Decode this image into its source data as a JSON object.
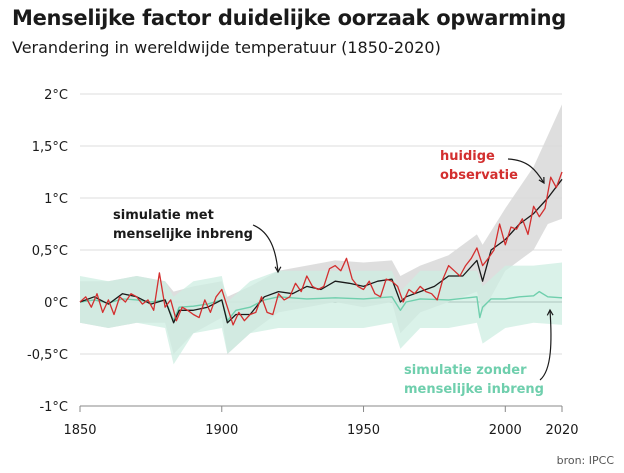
{
  "header": {
    "title": "Menselijke factor duidelijke oorzaak opwarming",
    "subtitle": "Verandering in wereldwijde temperatuur (1850-2020)"
  },
  "source": "bron: IPCC",
  "colors": {
    "observed": "#d32f2f",
    "human_sim": "#1a1a1a",
    "human_band": "#dadada",
    "natural_sim": "#6fcfad",
    "natural_band": "#cdeee1",
    "grid": "#dddddd",
    "baseline": "#555555"
  },
  "chart_data": {
    "type": "line",
    "title": "Verandering in wereldwijde temperatuur (1850-2020)",
    "ylim": [
      -1,
      2
    ],
    "xlim": [
      1850,
      2020
    ],
    "yticks": [
      -1,
      -0.5,
      0,
      0.5,
      1,
      1.5,
      2
    ],
    "ytick_labels": [
      "-1°C",
      "-0,5°C",
      "0°C",
      "0,5°C",
      "1°C",
      "1,5°C",
      "2°C"
    ],
    "xticks": [
      1850,
      1900,
      1950,
      2000,
      2020
    ],
    "xtick_labels": [
      "1850",
      "1900",
      "1950",
      "2000",
      "2020"
    ],
    "grid": true,
    "series": [
      {
        "name": "huidige observatie",
        "x": [
          1850,
          1852,
          1854,
          1856,
          1858,
          1860,
          1862,
          1864,
          1866,
          1868,
          1870,
          1872,
          1874,
          1876,
          1878,
          1880,
          1882,
          1884,
          1886,
          1888,
          1890,
          1892,
          1894,
          1896,
          1898,
          1900,
          1902,
          1904,
          1906,
          1908,
          1910,
          1912,
          1914,
          1916,
          1918,
          1920,
          1922,
          1924,
          1926,
          1928,
          1930,
          1932,
          1934,
          1936,
          1938,
          1940,
          1942,
          1944,
          1946,
          1948,
          1950,
          1952,
          1954,
          1956,
          1958,
          1960,
          1962,
          1964,
          1966,
          1968,
          1970,
          1972,
          1974,
          1976,
          1978,
          1980,
          1982,
          1984,
          1986,
          1988,
          1990,
          1992,
          1994,
          1996,
          1998,
          2000,
          2002,
          2004,
          2006,
          2008,
          2010,
          2012,
          2014,
          2016,
          2018,
          2020
        ],
        "y": [
          0.0,
          0.05,
          -0.05,
          0.08,
          -0.1,
          0.02,
          -0.12,
          0.05,
          0.0,
          0.08,
          0.05,
          -0.02,
          0.02,
          -0.08,
          0.28,
          -0.05,
          0.02,
          -0.18,
          -0.05,
          -0.08,
          -0.12,
          -0.15,
          0.02,
          -0.1,
          0.05,
          0.12,
          -0.05,
          -0.22,
          -0.1,
          -0.18,
          -0.12,
          -0.1,
          0.05,
          -0.1,
          -0.12,
          0.08,
          0.02,
          0.05,
          0.18,
          0.1,
          0.25,
          0.15,
          0.12,
          0.15,
          0.32,
          0.35,
          0.3,
          0.42,
          0.22,
          0.15,
          0.12,
          0.2,
          0.08,
          0.05,
          0.22,
          0.2,
          0.15,
          0.0,
          0.12,
          0.08,
          0.15,
          0.1,
          0.08,
          0.02,
          0.22,
          0.35,
          0.3,
          0.25,
          0.35,
          0.42,
          0.52,
          0.35,
          0.42,
          0.5,
          0.75,
          0.55,
          0.72,
          0.7,
          0.8,
          0.65,
          0.92,
          0.82,
          0.9,
          1.2,
          1.1,
          1.25
        ]
      },
      {
        "name": "simulatie met menselijke inbreng",
        "x": [
          1850,
          1855,
          1860,
          1865,
          1870,
          1875,
          1880,
          1883,
          1885,
          1890,
          1895,
          1900,
          1902,
          1905,
          1910,
          1915,
          1920,
          1925,
          1930,
          1935,
          1940,
          1945,
          1950,
          1955,
          1960,
          1963,
          1965,
          1970,
          1975,
          1980,
          1985,
          1990,
          1992,
          1995,
          2000,
          2005,
          2010,
          2015,
          2020
        ],
        "y": [
          0.0,
          0.05,
          -0.02,
          0.08,
          0.05,
          -0.02,
          0.02,
          -0.2,
          -0.08,
          -0.08,
          -0.05,
          0.02,
          -0.2,
          -0.12,
          -0.12,
          0.05,
          0.1,
          0.08,
          0.15,
          0.12,
          0.2,
          0.18,
          0.15,
          0.2,
          0.22,
          0.0,
          0.05,
          0.1,
          0.15,
          0.25,
          0.25,
          0.4,
          0.2,
          0.5,
          0.6,
          0.75,
          0.85,
          1.0,
          1.18
        ]
      },
      {
        "name": "simulatie zonder menselijke inbreng",
        "x": [
          1850,
          1855,
          1860,
          1865,
          1870,
          1875,
          1880,
          1883,
          1885,
          1890,
          1895,
          1900,
          1902,
          1905,
          1910,
          1915,
          1920,
          1930,
          1940,
          1950,
          1960,
          1963,
          1965,
          1970,
          1980,
          1990,
          1991,
          1992,
          1995,
          2000,
          2005,
          2010,
          2012,
          2015,
          2020
        ],
        "y": [
          0.0,
          0.02,
          -0.01,
          0.03,
          0.02,
          0.0,
          0.02,
          -0.18,
          -0.05,
          -0.04,
          -0.02,
          0.02,
          -0.18,
          -0.08,
          -0.05,
          0.02,
          0.05,
          0.03,
          0.04,
          0.03,
          0.05,
          -0.08,
          0.0,
          0.03,
          0.02,
          0.05,
          -0.15,
          -0.05,
          0.03,
          0.03,
          0.05,
          0.06,
          0.1,
          0.05,
          0.04
        ]
      }
    ],
    "bands": [
      {
        "series": "simulatie met menselijke inbreng",
        "x": [
          1850,
          1860,
          1870,
          1880,
          1883,
          1890,
          1900,
          1902,
          1910,
          1920,
          1930,
          1940,
          1950,
          1960,
          1963,
          1970,
          1980,
          1990,
          1992,
          2000,
          2010,
          2015,
          2020
        ],
        "lower": [
          -0.2,
          -0.25,
          -0.2,
          -0.2,
          -0.5,
          -0.3,
          -0.15,
          -0.5,
          -0.3,
          -0.1,
          -0.05,
          0.0,
          -0.05,
          0.0,
          -0.3,
          -0.1,
          0.0,
          0.1,
          -0.1,
          0.3,
          0.5,
          0.75,
          0.8
        ],
        "upper": [
          0.2,
          0.2,
          0.25,
          0.2,
          0.1,
          0.15,
          0.2,
          0.05,
          0.15,
          0.3,
          0.35,
          0.4,
          0.38,
          0.4,
          0.25,
          0.35,
          0.45,
          0.65,
          0.55,
          0.9,
          1.3,
          1.6,
          1.9
        ]
      },
      {
        "series": "simulatie zonder menselijke inbreng",
        "x": [
          1850,
          1860,
          1870,
          1880,
          1883,
          1890,
          1900,
          1902,
          1910,
          1920,
          1930,
          1940,
          1950,
          1960,
          1963,
          1970,
          1980,
          1990,
          1992,
          2000,
          2010,
          2020
        ],
        "lower": [
          -0.2,
          -0.25,
          -0.2,
          -0.25,
          -0.6,
          -0.3,
          -0.25,
          -0.5,
          -0.3,
          -0.25,
          -0.25,
          -0.25,
          -0.25,
          -0.2,
          -0.45,
          -0.25,
          -0.25,
          -0.2,
          -0.4,
          -0.25,
          -0.2,
          -0.22
        ],
        "upper": [
          0.25,
          0.2,
          0.25,
          0.2,
          0.05,
          0.2,
          0.25,
          0.0,
          0.2,
          0.3,
          0.3,
          0.3,
          0.3,
          0.3,
          0.1,
          0.3,
          0.3,
          0.3,
          0.15,
          0.35,
          0.35,
          0.38
        ]
      }
    ],
    "annotations": [
      {
        "text": [
          "huidige",
          "observatie"
        ],
        "series": "huidige observatie"
      },
      {
        "text": [
          "simulatie met",
          "menselijke inbreng"
        ],
        "series": "simulatie met menselijke inbreng"
      },
      {
        "text": [
          "simulatie zonder",
          "menselijke inbreng"
        ],
        "series": "simulatie zonder menselijke inbreng"
      }
    ]
  }
}
